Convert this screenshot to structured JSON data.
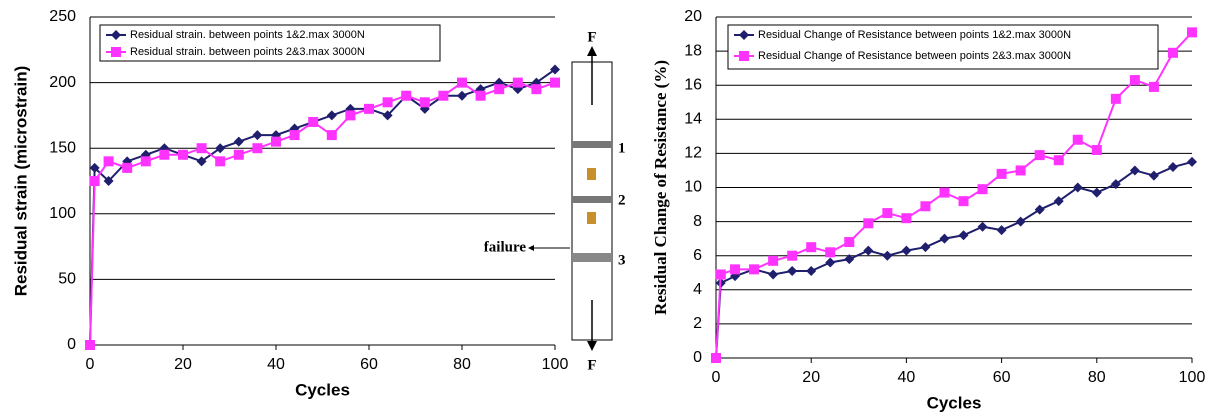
{
  "chart_data": [
    {
      "type": "line",
      "ylabel": "Residual strain (microstrain)",
      "xlabel": "Cycles",
      "x": [
        0,
        1,
        4,
        8,
        12,
        16,
        20,
        24,
        28,
        32,
        36,
        40,
        44,
        48,
        52,
        56,
        60,
        64,
        68,
        72,
        76,
        80,
        84,
        88,
        92,
        96,
        100
      ],
      "series": [
        {
          "name": "Residual strain. between points 1&2.max 3000N",
          "color": "#1f1f6e",
          "marker": "diamond",
          "values": [
            0,
            135,
            125,
            140,
            145,
            150,
            145,
            140,
            150,
            155,
            160,
            160,
            165,
            170,
            175,
            180,
            180,
            175,
            190,
            180,
            190,
            190,
            195,
            200,
            195,
            200,
            210
          ]
        },
        {
          "name": "Residual strain. between points 2&3.max 3000N",
          "color": "#ff33ff",
          "marker": "square",
          "values": [
            0,
            125,
            140,
            135,
            140,
            145,
            145,
            150,
            140,
            145,
            150,
            155,
            160,
            170,
            160,
            175,
            180,
            185,
            190,
            185,
            190,
            200,
            190,
            195,
            200,
            195,
            200
          ]
        }
      ],
      "xlim": [
        0,
        100
      ],
      "xticks": [
        0,
        20,
        40,
        60,
        80,
        100
      ],
      "ylim": [
        0,
        250
      ],
      "yticks": [
        0,
        50,
        100,
        150,
        200,
        250
      ],
      "grid": true
    },
    {
      "type": "line",
      "ylabel": "Residual Change of Resistance (%)",
      "xlabel": "Cycles",
      "x": [
        0,
        1,
        4,
        8,
        12,
        16,
        20,
        24,
        28,
        32,
        36,
        40,
        44,
        48,
        52,
        56,
        60,
        64,
        68,
        72,
        76,
        80,
        84,
        88,
        92,
        96,
        100
      ],
      "series": [
        {
          "name": "Residual Change of Resistance between points 1&2.max 3000N",
          "color": "#1f1f6e",
          "marker": "diamond",
          "values": [
            0,
            4.4,
            4.8,
            5.2,
            4.9,
            5.1,
            5.1,
            5.6,
            5.8,
            6.3,
            6.0,
            6.3,
            6.5,
            7.0,
            7.2,
            7.7,
            7.5,
            8.0,
            8.7,
            9.2,
            10.0,
            9.7,
            10.2,
            11.0,
            10.7,
            11.2,
            11.5
          ]
        },
        {
          "name": "Residual Change of Resistance between points 2&3.max 3000N",
          "color": "#ff33ff",
          "marker": "square",
          "values": [
            0,
            4.9,
            5.2,
            5.2,
            5.7,
            6.0,
            6.5,
            6.2,
            6.8,
            7.9,
            8.5,
            8.2,
            8.9,
            9.7,
            9.2,
            9.9,
            10.8,
            11.0,
            11.9,
            11.6,
            12.8,
            12.2,
            15.2,
            16.3,
            15.9,
            17.9,
            19.1
          ]
        }
      ],
      "xlim": [
        0,
        100
      ],
      "xticks": [
        0,
        20,
        40,
        60,
        80,
        100
      ],
      "ylim": [
        0,
        20
      ],
      "yticks": [
        0,
        2,
        4,
        6,
        8,
        10,
        12,
        14,
        16,
        18,
        20
      ],
      "grid": true
    }
  ],
  "diagram": {
    "force_top": "F",
    "force_bottom": "F",
    "point_labels": [
      "1",
      "2",
      "3"
    ],
    "failure": "failure"
  }
}
